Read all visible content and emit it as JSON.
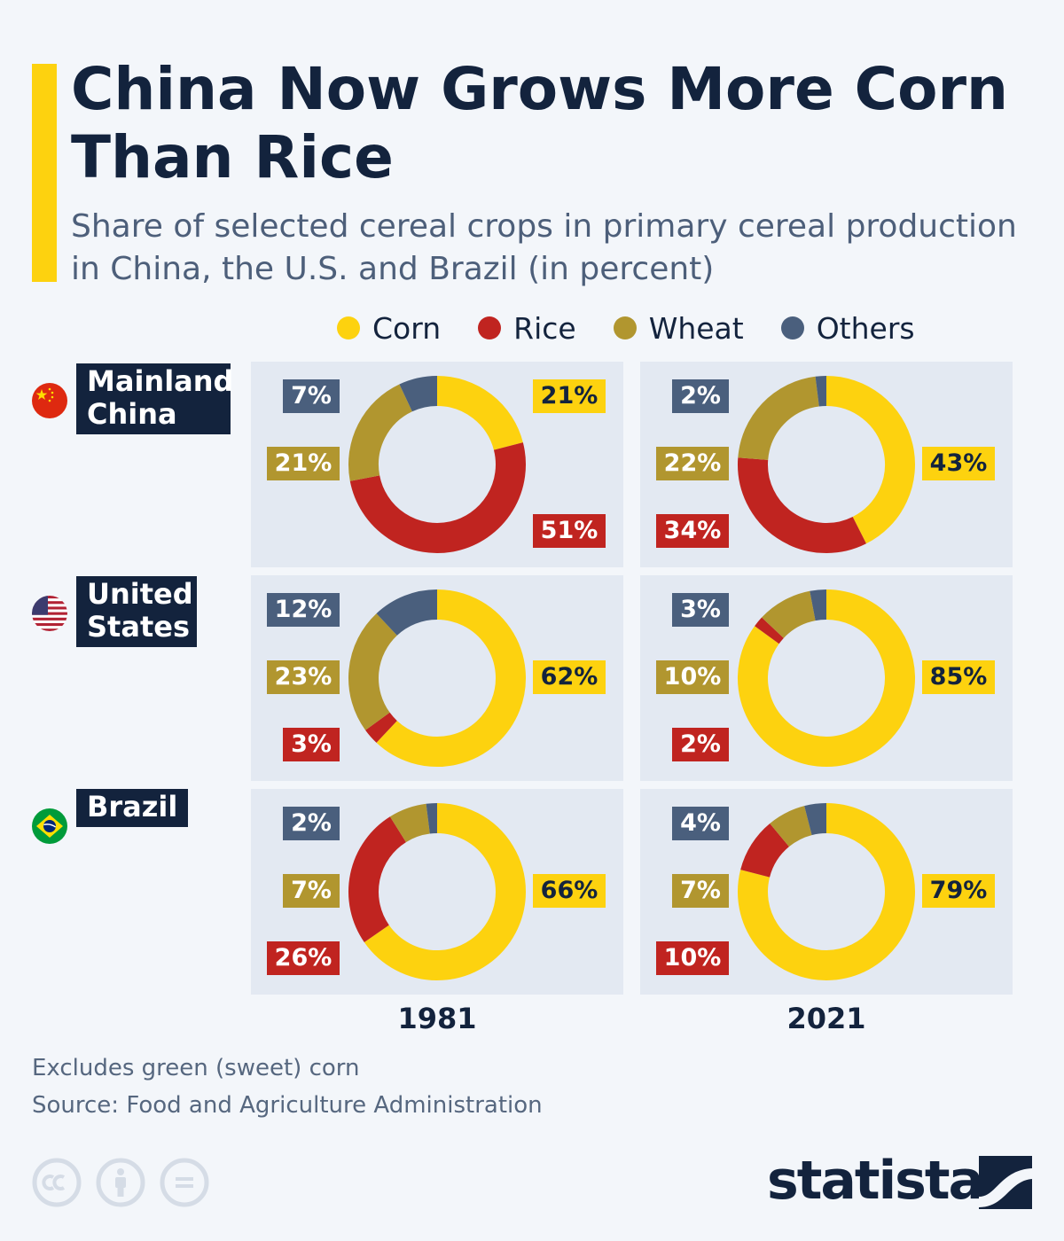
{
  "header": {
    "title": "China Now Grows More Corn Than Rice",
    "subtitle": "Share of selected cereal crops in primary cereal production in China, the U.S. and Brazil (in percent)"
  },
  "legend": [
    {
      "label": "Corn",
      "color": "#fdd20f"
    },
    {
      "label": "Rice",
      "color": "#c02420"
    },
    {
      "label": "Wheat",
      "color": "#b1962f"
    },
    {
      "label": "Others",
      "color": "#4a5f7d"
    }
  ],
  "chart_data": {
    "type": "donut",
    "title": "China Now Grows More Corn Than Rice",
    "subtitle": "Share of selected cereal crops in primary cereal production in China, the U.S. and Brazil (in percent)",
    "unit": "percent",
    "slice_order": [
      "Corn",
      "Rice",
      "Wheat",
      "Others"
    ],
    "colors": {
      "Corn": "#fdd20f",
      "Rice": "#c02420",
      "Wheat": "#b1962f",
      "Others": "#4a5f7d"
    },
    "years": [
      "1981",
      "2021"
    ],
    "countries": [
      {
        "name": "Mainland China",
        "flag": "china-flag-icon",
        "data": {
          "1981": {
            "Corn": 21,
            "Rice": 51,
            "Wheat": 21,
            "Others": 7
          },
          "2021": {
            "Corn": 43,
            "Rice": 34,
            "Wheat": 22,
            "Others": 2
          }
        }
      },
      {
        "name": "United States",
        "flag": "us-flag-icon",
        "data": {
          "1981": {
            "Corn": 62,
            "Rice": 3,
            "Wheat": 23,
            "Others": 12
          },
          "2021": {
            "Corn": 85,
            "Rice": 2,
            "Wheat": 10,
            "Others": 3
          }
        }
      },
      {
        "name": "Brazil",
        "flag": "brazil-flag-icon",
        "data": {
          "1981": {
            "Corn": 66,
            "Rice": 26,
            "Wheat": 7,
            "Others": 2
          },
          "2021": {
            "Corn": 79,
            "Rice": 10,
            "Wheat": 7,
            "Others": 4
          }
        }
      }
    ]
  },
  "footer": {
    "note": "Excludes green (sweet) corn",
    "source": "Source: Food and Agriculture Administration",
    "brand": "statista"
  }
}
